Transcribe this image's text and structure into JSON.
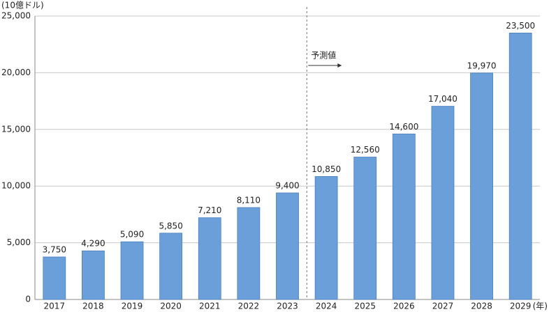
{
  "chart_data": {
    "type": "bar",
    "y_axis_label": "(10億ドル)",
    "x_axis_label": "(年)",
    "categories": [
      "2017",
      "2018",
      "2019",
      "2020",
      "2021",
      "2022",
      "2023",
      "2024",
      "2025",
      "2026",
      "2027",
      "2028",
      "2029"
    ],
    "values": [
      3750,
      4290,
      5090,
      5850,
      7210,
      8110,
      9400,
      10850,
      12560,
      14600,
      17040,
      19970,
      23500
    ],
    "value_labels": [
      "3,750",
      "4,290",
      "5,090",
      "5,850",
      "7,210",
      "8,110",
      "9,400",
      "10,850",
      "12,560",
      "14,600",
      "17,040",
      "19,970",
      "23,500"
    ],
    "color": "#6a9fd9",
    "ylim": [
      0,
      25000
    ],
    "yticks": [
      0,
      {
        "value": 5000,
        "label": "5,000"
      },
      {
        "value": 10000,
        "label": "10,000"
      },
      {
        "value": 15000,
        "label": "15,000"
      },
      {
        "value": 20000,
        "label": "20,000"
      },
      {
        "value": 25000,
        "label": "25,000"
      }
    ],
    "grid": true,
    "annotation": "予測値",
    "forecast_start": "2024"
  }
}
